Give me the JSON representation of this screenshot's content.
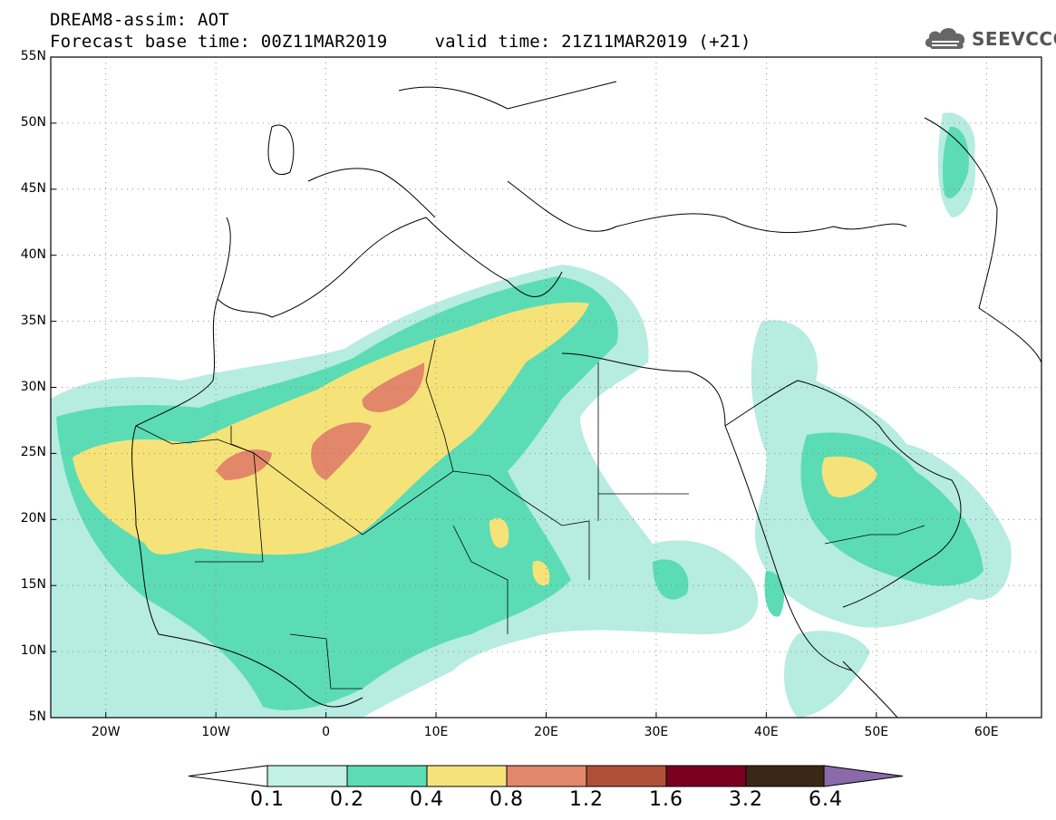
{
  "header": {
    "title": "DREAM8-assim: AOT",
    "base_time": "Forecast base time: 00Z11MAR2019",
    "valid_time": "valid time: 21Z11MAR2019 (+21)"
  },
  "logo": {
    "text": "SEEVCCC",
    "icon": "cloud-icon"
  },
  "map": {
    "lon_range": [
      -25,
      65
    ],
    "lat_range": [
      5,
      55
    ],
    "lat_labels": [
      "55N",
      "50N",
      "45N",
      "40N",
      "35N",
      "30N",
      "25N",
      "20N",
      "15N",
      "10N",
      "5N"
    ],
    "lat_values": [
      55,
      50,
      45,
      40,
      35,
      30,
      25,
      20,
      15,
      10,
      5
    ],
    "lon_labels": [
      "20W",
      "10W",
      "0",
      "10E",
      "20E",
      "30E",
      "40E",
      "50E",
      "60E"
    ],
    "lon_values": [
      -20,
      -10,
      0,
      10,
      20,
      30,
      40,
      50,
      60
    ],
    "gridlines": "dotted",
    "aot_colors": {
      "0.1-0.2": "#b7ece0",
      "0.2-0.4": "#5cdcb4",
      "0.4-0.8": "#f5e37a",
      "0.8-1.2": "#e3876b"
    }
  },
  "colorbar": {
    "labels": [
      "0.1",
      "0.2",
      "0.4",
      "0.8",
      "1.2",
      "1.6",
      "3.2",
      "6.4"
    ],
    "colors": [
      "#ffffff",
      "#c2f0e4",
      "#5cdcb4",
      "#f5e37a",
      "#e3876b",
      "#b05038",
      "#7a0020",
      "#3b2716",
      "#8a6aa8"
    ]
  }
}
